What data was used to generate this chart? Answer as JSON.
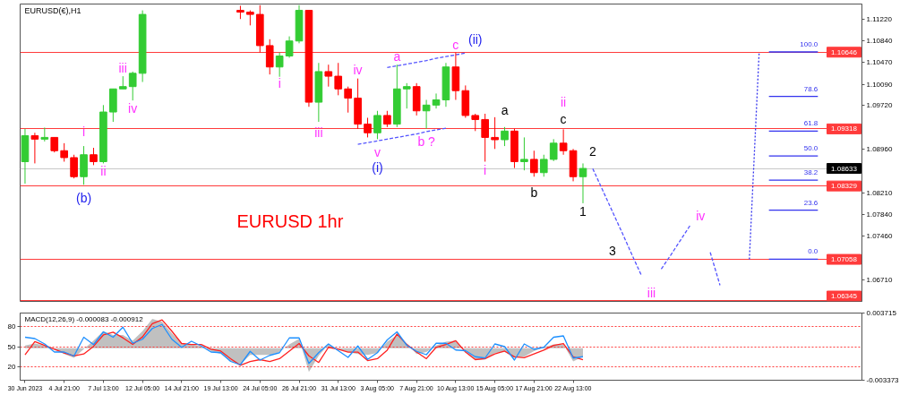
{
  "chart_data": [
    {
      "type": "candlestick",
      "title": "EURUSD(€),H1",
      "tick_labels": "y",
      "ylim": [
        1.0633,
        1.1148
      ],
      "annotations": [
        "EURUSD 1hr",
        "i",
        "ii",
        "iii",
        "iv",
        "i",
        "iii",
        "iv",
        "v",
        "a",
        "b ?",
        "c",
        "i",
        "ii",
        "iii",
        "iv",
        "(b)",
        "(i)",
        "(ii)",
        "a",
        "b",
        "c",
        "1",
        "2",
        "3"
      ],
      "categories": [
        null,
        null,
        null,
        null,
        null,
        null,
        null,
        null,
        null,
        null,
        null,
        null,
        null,
        null,
        null,
        null,
        null,
        null,
        null,
        null,
        null,
        null,
        null,
        null,
        null,
        null,
        null,
        null,
        null,
        null,
        null,
        null,
        null,
        null,
        null,
        null,
        null,
        null,
        null,
        null,
        null,
        null,
        null,
        null,
        null,
        null,
        null,
        null,
        null,
        null,
        null,
        null,
        null,
        null,
        null,
        null,
        null,
        null,
        null,
        null,
        null,
        null,
        null,
        null,
        null,
        null,
        null,
        null,
        null,
        null,
        null,
        null,
        null,
        null,
        null,
        null,
        null,
        null,
        null,
        null,
        null,
        null,
        null,
        null,
        null,
        null
      ],
      "yticks": [
        {
          "value": 1.1122,
          "label": "1.11220"
        },
        {
          "value": 1.1084,
          "label": "1.10840"
        },
        {
          "value": 1.1047,
          "label": "1.10470"
        },
        {
          "value": 1.1009,
          "label": "1.10090"
        },
        {
          "value": 1.0972,
          "label": "1.09720"
        },
        {
          "value": 1.0896,
          "label": "1.08960"
        },
        {
          "value": 1.0821,
          "label": "1.08210"
        },
        {
          "value": 1.0784,
          "label": "1.07840"
        },
        {
          "value": 1.0746,
          "label": "1.07460"
        },
        {
          "value": 1.0671,
          "label": "1.06710"
        }
      ],
      "ohlc": [
        [
          1.0875,
          1.0932,
          1.0837,
          1.092
        ],
        [
          1.092,
          1.0925,
          1.0872,
          1.0914
        ],
        [
          1.0914,
          1.0934,
          1.091,
          1.0917
        ],
        [
          1.0917,
          1.0917,
          1.0891,
          1.0894
        ],
        [
          1.0894,
          1.0907,
          1.0875,
          1.0882
        ],
        [
          1.0882,
          1.0887,
          1.0846,
          1.0849
        ],
        [
          1.0849,
          1.0902,
          1.0835,
          1.0887
        ],
        [
          1.0887,
          1.0899,
          1.0869,
          1.0875
        ],
        [
          1.0875,
          1.0973,
          1.0872,
          1.0961
        ],
        [
          1.0961,
          1.1001,
          1.0944,
          1.1001
        ],
        [
          1.1001,
          1.1023,
          1.1001,
          1.1005
        ],
        [
          1.1005,
          1.1031,
          1.0981,
          1.1028
        ],
        [
          1.1028,
          1.1137,
          1.1013,
          1.113
        ],
        null,
        null,
        null,
        null,
        null,
        null,
        null,
        null,
        null,
        [
          1.1137,
          1.1145,
          1.1122,
          1.1134
        ],
        [
          1.1134,
          1.1137,
          1.1111,
          1.113
        ],
        [
          1.113,
          1.1146,
          1.1064,
          1.1076
        ],
        [
          1.1076,
          1.1087,
          1.1026,
          1.1039
        ],
        [
          1.1039,
          1.1064,
          1.1022,
          1.1058
        ],
        [
          1.1058,
          1.1092,
          1.1055,
          1.1084
        ],
        [
          1.1084,
          1.1146,
          1.108,
          1.1137
        ],
        [
          1.1137,
          1.1137,
          1.097,
          1.0978
        ],
        [
          1.0978,
          1.1046,
          1.0944,
          1.1031
        ],
        [
          1.1031,
          1.1043,
          1.1005,
          1.1023
        ],
        [
          1.1023,
          1.1046,
          1.099,
          1.1001
        ],
        [
          1.1001,
          1.1005,
          1.096,
          1.0985
        ],
        [
          1.0985,
          1.1019,
          1.0932,
          1.094
        ],
        [
          1.094,
          1.0951,
          1.0917,
          1.0925
        ],
        [
          1.0925,
          1.0963,
          1.0914,
          1.0955
        ],
        [
          1.0955,
          1.0963,
          1.0935,
          1.094
        ],
        [
          1.094,
          1.1043,
          1.0935,
          1.1001
        ],
        [
          1.1001,
          1.1011,
          1.0967,
          1.1005
        ],
        [
          1.1005,
          1.1011,
          1.0955,
          1.0963
        ],
        [
          1.0963,
          1.0982,
          1.0932,
          1.0973
        ],
        [
          1.0973,
          1.0993,
          1.0967,
          1.0982
        ],
        [
          1.0982,
          1.1046,
          1.097,
          1.1039
        ],
        [
          1.1039,
          1.1064,
          1.0982,
          1.0998
        ],
        [
          1.0998,
          1.1007,
          1.0951,
          1.0955
        ],
        [
          1.0955,
          1.0958,
          1.0928,
          1.0948
        ],
        [
          1.0948,
          1.0958,
          1.0875,
          1.0917
        ],
        [
          1.0917,
          1.0952,
          1.0897,
          1.0913
        ],
        [
          1.0913,
          1.0935,
          1.0902,
          1.0928
        ],
        [
          1.0928,
          1.0932,
          1.0864,
          1.0875
        ],
        [
          1.0875,
          1.0917,
          1.086,
          1.0879
        ],
        [
          1.0879,
          1.0894,
          1.0849,
          1.0856
        ],
        [
          1.0856,
          1.0887,
          1.0849,
          1.0879
        ],
        [
          1.0879,
          1.0914,
          1.0876,
          1.0907
        ],
        [
          1.0907,
          1.0931,
          1.0887,
          1.0894
        ],
        [
          1.0894,
          1.0897,
          1.0841,
          1.0849
        ],
        [
          1.0849,
          1.0872,
          1.0803,
          1.08633
        ],
        null,
        null,
        null,
        null,
        null,
        null,
        null,
        null,
        null,
        null,
        null,
        null,
        null,
        null,
        null,
        null,
        null,
        null,
        null,
        null,
        null,
        null,
        null,
        null,
        null,
        null,
        null,
        null
      ],
      "colors": [
        "#33cc33",
        "#ff0000",
        "#33cc33",
        "#ff0000",
        "#ff0000",
        "#ff0000",
        "#33cc33",
        "#ff0000",
        "#33cc33",
        "#33cc33",
        "#33cc33",
        "#33cc33",
        "#33cc33",
        null,
        null,
        null,
        null,
        null,
        null,
        null,
        null,
        null,
        "#ff0000",
        "#ff0000",
        "#ff0000",
        "#ff0000",
        "#33cc33",
        "#33cc33",
        "#33cc33",
        "#ff0000",
        "#33cc33",
        "#ff0000",
        "#ff0000",
        "#ff0000",
        "#ff0000",
        "#ff0000",
        "#33cc33",
        "#ff0000",
        "#33cc33",
        "#33cc33",
        "#ff0000",
        "#33cc33",
        "#33cc33",
        "#33cc33",
        "#ff0000",
        "#ff0000",
        "#ff0000",
        "#ff0000",
        "#ff0000",
        "#33cc33",
        "#ff0000",
        "#33cc33",
        "#ff0000",
        "#33cc33",
        "#33cc33",
        "#ff0000",
        "#ff0000",
        "#33cc33",
        null,
        null,
        null,
        null,
        null,
        null,
        null,
        null,
        null,
        null,
        null,
        null,
        null,
        null,
        null,
        null,
        null,
        null,
        null,
        null,
        null,
        null,
        null,
        null,
        null,
        null,
        null,
        null
      ],
      "ref_lines": [
        {
          "axis": "y",
          "value": 1.10646,
          "label": "1.10646",
          "color": "#ff3b3b"
        },
        {
          "axis": "y",
          "value": 1.09318,
          "label": "1.09318",
          "color": "#ff3b3b"
        },
        {
          "axis": "y",
          "value": 1.08633,
          "label": "1.08633",
          "color": "#c8c8c8"
        },
        {
          "axis": "y",
          "value": 1.08329,
          "label": "1.08329",
          "color": "#ff3b3b"
        },
        {
          "axis": "y",
          "value": 1.07058,
          "label": "1.07058",
          "color": "#ff3b3b"
        },
        {
          "axis": "y",
          "value": 1.06345,
          "label": "1.06345",
          "color": "#ff3b3b"
        }
      ],
      "series": [
        {
          "type": "line",
          "line_style": "dashed",
          "color": "#5555ff",
          "values": [
            null,
            null,
            null,
            null,
            null,
            null,
            null,
            null,
            null,
            null,
            null,
            null,
            null,
            null,
            null,
            null,
            null,
            null,
            null,
            null,
            null,
            null,
            null,
            null,
            null,
            null,
            null,
            null,
            null,
            null,
            null,
            null,
            null,
            null,
            null,
            null,
            null,
            null,
            null,
            null,
            null,
            null,
            null,
            null,
            null,
            null,
            null,
            null,
            null,
            null,
            null,
            null,
            null,
            null,
            null,
            null,
            null,
            null,
            1.0863,
            1.0826,
            1.0789,
            1.0752,
            1.0714,
            1.0677,
            null,
            1.0689,
            1.0714,
            1.074,
            1.0766,
            null,
            1.0718,
            1.0661,
            null,
            null,
            null,
            null,
            null,
            null,
            null,
            null,
            null,
            null,
            null,
            null,
            null,
            null
          ]
        },
        {
          "type": "line",
          "line_style": "dashed",
          "color": "#5555ff",
          "values": [
            null,
            null,
            null,
            null,
            null,
            null,
            null,
            null,
            null,
            null,
            null,
            null,
            null,
            null,
            null,
            null,
            null,
            null,
            null,
            null,
            null,
            null,
            null,
            null,
            null,
            null,
            null,
            null,
            null,
            null,
            null,
            null,
            null,
            null,
            null,
            null,
            null,
            1.1038,
            1.1041,
            1.1044,
            1.1047,
            1.105,
            1.1054,
            1.1057,
            1.106,
            1.1063,
            null,
            null,
            null,
            null,
            null,
            null,
            null,
            null,
            null,
            null,
            null,
            null,
            null,
            null,
            null,
            null,
            null,
            null,
            null,
            null,
            null,
            null,
            null,
            null,
            null,
            null,
            null,
            null,
            null,
            null,
            null,
            null,
            null,
            null,
            null,
            null,
            null,
            null,
            null,
            null
          ]
        },
        {
          "type": "line",
          "line_style": "dashed",
          "color": "#5555ff",
          "values": [
            null,
            null,
            null,
            null,
            null,
            null,
            null,
            null,
            null,
            null,
            null,
            null,
            null,
            null,
            null,
            null,
            null,
            null,
            null,
            null,
            null,
            null,
            null,
            null,
            null,
            null,
            null,
            null,
            null,
            null,
            null,
            null,
            null,
            null,
            1.0905,
            1.0908,
            1.0911,
            1.0914,
            1.0917,
            1.092,
            1.0923,
            1.0927,
            1.093,
            1.0933,
            null,
            null,
            null,
            null,
            null,
            null,
            null,
            null,
            null,
            null,
            null,
            null,
            null,
            null,
            null,
            null,
            null,
            null,
            null,
            null,
            null,
            null,
            null,
            null,
            null,
            null,
            null,
            null,
            null,
            null,
            null,
            null,
            null,
            null,
            null,
            null,
            null,
            null,
            null,
            null,
            null,
            null
          ]
        },
        {
          "type": "line",
          "line_style": "dotted",
          "color": "#3333ee",
          "values": [
            null,
            null,
            null,
            null,
            null,
            null,
            null,
            null,
            null,
            null,
            null,
            null,
            null,
            null,
            null,
            null,
            null,
            null,
            null,
            null,
            null,
            null,
            null,
            null,
            null,
            null,
            null,
            null,
            null,
            null,
            null,
            null,
            null,
            null,
            null,
            null,
            null,
            null,
            null,
            null,
            null,
            null,
            null,
            null,
            null,
            null,
            null,
            null,
            null,
            null,
            null,
            null,
            null,
            null,
            null,
            null,
            null,
            null,
            null,
            null,
            null,
            null,
            null,
            null,
            null,
            null,
            null,
            null,
            null,
            null,
            null,
            null,
            null,
            null,
            1.0706,
            1.1065,
            null,
            null,
            null,
            null,
            null,
            null,
            null,
            null,
            null,
            null
          ]
        },
        {
          "type": "line",
          "name": "100.0",
          "color": "#3333ee",
          "values": [
            null,
            null,
            null,
            null,
            null,
            null,
            null,
            null,
            null,
            null,
            null,
            null,
            null,
            null,
            null,
            null,
            null,
            null,
            null,
            null,
            null,
            null,
            null,
            null,
            null,
            null,
            null,
            null,
            null,
            null,
            null,
            null,
            null,
            null,
            null,
            null,
            null,
            null,
            null,
            null,
            null,
            null,
            null,
            null,
            null,
            null,
            null,
            null,
            null,
            null,
            null,
            null,
            null,
            null,
            null,
            null,
            null,
            null,
            null,
            null,
            null,
            null,
            null,
            null,
            null,
            null,
            null,
            null,
            null,
            null,
            null,
            null,
            null,
            null,
            null,
            null,
            1.1065,
            1.1065,
            1.1065,
            1.1065,
            1.1065,
            1.1065,
            null,
            null,
            null,
            null
          ]
        },
        {
          "type": "line",
          "name": "78.6",
          "color": "#3333ee",
          "values": [
            null,
            null,
            null,
            null,
            null,
            null,
            null,
            null,
            null,
            null,
            null,
            null,
            null,
            null,
            null,
            null,
            null,
            null,
            null,
            null,
            null,
            null,
            null,
            null,
            null,
            null,
            null,
            null,
            null,
            null,
            null,
            null,
            null,
            null,
            null,
            null,
            null,
            null,
            null,
            null,
            null,
            null,
            null,
            null,
            null,
            null,
            null,
            null,
            null,
            null,
            null,
            null,
            null,
            null,
            null,
            null,
            null,
            null,
            null,
            null,
            null,
            null,
            null,
            null,
            null,
            null,
            null,
            null,
            null,
            null,
            null,
            null,
            null,
            null,
            null,
            null,
            1.0988,
            1.0988,
            1.0988,
            1.0988,
            1.0988,
            1.0988,
            null,
            null,
            null,
            null
          ]
        },
        {
          "type": "line",
          "name": "61.8",
          "color": "#3333ee",
          "values": [
            null,
            null,
            null,
            null,
            null,
            null,
            null,
            null,
            null,
            null,
            null,
            null,
            null,
            null,
            null,
            null,
            null,
            null,
            null,
            null,
            null,
            null,
            null,
            null,
            null,
            null,
            null,
            null,
            null,
            null,
            null,
            null,
            null,
            null,
            null,
            null,
            null,
            null,
            null,
            null,
            null,
            null,
            null,
            null,
            null,
            null,
            null,
            null,
            null,
            null,
            null,
            null,
            null,
            null,
            null,
            null,
            null,
            null,
            null,
            null,
            null,
            null,
            null,
            null,
            null,
            null,
            null,
            null,
            null,
            null,
            null,
            null,
            null,
            null,
            null,
            null,
            1.0928,
            1.0928,
            1.0928,
            1.0928,
            1.0928,
            1.0928,
            null,
            null,
            null,
            null
          ]
        },
        {
          "type": "line",
          "name": "50.0",
          "color": "#3333ee",
          "values": [
            null,
            null,
            null,
            null,
            null,
            null,
            null,
            null,
            null,
            null,
            null,
            null,
            null,
            null,
            null,
            null,
            null,
            null,
            null,
            null,
            null,
            null,
            null,
            null,
            null,
            null,
            null,
            null,
            null,
            null,
            null,
            null,
            null,
            null,
            null,
            null,
            null,
            null,
            null,
            null,
            null,
            null,
            null,
            null,
            null,
            null,
            null,
            null,
            null,
            null,
            null,
            null,
            null,
            null,
            null,
            null,
            null,
            null,
            null,
            null,
            null,
            null,
            null,
            null,
            null,
            null,
            null,
            null,
            null,
            null,
            null,
            null,
            null,
            null,
            null,
            null,
            1.0885,
            1.0885,
            1.0885,
            1.0885,
            1.0885,
            1.0885,
            null,
            null,
            null,
            null
          ]
        },
        {
          "type": "line",
          "name": "38.2",
          "color": "#3333ee",
          "values": [
            null,
            null,
            null,
            null,
            null,
            null,
            null,
            null,
            null,
            null,
            null,
            null,
            null,
            null,
            null,
            null,
            null,
            null,
            null,
            null,
            null,
            null,
            null,
            null,
            null,
            null,
            null,
            null,
            null,
            null,
            null,
            null,
            null,
            null,
            null,
            null,
            null,
            null,
            null,
            null,
            null,
            null,
            null,
            null,
            null,
            null,
            null,
            null,
            null,
            null,
            null,
            null,
            null,
            null,
            null,
            null,
            null,
            null,
            null,
            null,
            null,
            null,
            null,
            null,
            null,
            null,
            null,
            null,
            null,
            null,
            null,
            null,
            null,
            null,
            null,
            null,
            1.0843,
            1.0843,
            1.0843,
            1.0843,
            1.0843,
            1.0843,
            null,
            null,
            null,
            null
          ]
        },
        {
          "type": "line",
          "name": "23.6",
          "color": "#3333ee",
          "values": [
            null,
            null,
            null,
            null,
            null,
            null,
            null,
            null,
            null,
            null,
            null,
            null,
            null,
            null,
            null,
            null,
            null,
            null,
            null,
            null,
            null,
            null,
            null,
            null,
            null,
            null,
            null,
            null,
            null,
            null,
            null,
            null,
            null,
            null,
            null,
            null,
            null,
            null,
            null,
            null,
            null,
            null,
            null,
            null,
            null,
            null,
            null,
            null,
            null,
            null,
            null,
            null,
            null,
            null,
            null,
            null,
            null,
            null,
            null,
            null,
            null,
            null,
            null,
            null,
            null,
            null,
            null,
            null,
            null,
            null,
            null,
            null,
            null,
            null,
            null,
            null,
            1.0791,
            1.0791,
            1.0791,
            1.0791,
            1.0791,
            1.0791,
            null,
            null,
            null,
            null
          ]
        },
        {
          "type": "line",
          "name": "0.0",
          "color": "#3333ee",
          "values": [
            null,
            null,
            null,
            null,
            null,
            null,
            null,
            null,
            null,
            null,
            null,
            null,
            null,
            null,
            null,
            null,
            null,
            null,
            null,
            null,
            null,
            null,
            null,
            null,
            null,
            null,
            null,
            null,
            null,
            null,
            null,
            null,
            null,
            null,
            null,
            null,
            null,
            null,
            null,
            null,
            null,
            null,
            null,
            null,
            null,
            null,
            null,
            null,
            null,
            null,
            null,
            null,
            null,
            null,
            null,
            null,
            null,
            null,
            null,
            null,
            null,
            null,
            null,
            null,
            null,
            null,
            null,
            null,
            null,
            null,
            null,
            null,
            null,
            null,
            null,
            null,
            1.0706,
            1.0706,
            1.0706,
            1.0706,
            1.0706,
            1.0706,
            null,
            null,
            null,
            null
          ]
        }
      ]
    },
    {
      "type": "area",
      "title": "MACD(12,26,9) -0.000083 -0.000912",
      "categories": [
        "30 Jun 2023",
        null,
        null,
        null,
        "4 Jul 21:00",
        null,
        null,
        null,
        "7 Jul 13:00",
        null,
        null,
        null,
        "12 Jul 05:00",
        null,
        null,
        null,
        "14 Jul 21:00",
        null,
        null,
        null,
        "19 Jul 13:00",
        null,
        null,
        null,
        "24 Jul 05:00",
        null,
        null,
        null,
        "26 Jul 21:00",
        null,
        null,
        null,
        "31 Jul 13:00",
        null,
        null,
        null,
        "3 Aug 05:00",
        null,
        null,
        null,
        "7 Aug 21:00",
        null,
        null,
        null,
        "10 Aug 13:00",
        null,
        null,
        null,
        "15 Aug 05:00",
        null,
        null,
        null,
        "17 Aug 21:00",
        null,
        null,
        null,
        "22 Aug 13:00",
        null,
        null,
        null,
        null,
        null,
        null,
        null,
        null,
        null,
        null,
        null,
        null,
        null,
        null,
        null,
        null,
        null,
        null,
        null,
        null,
        null,
        null,
        null,
        null,
        null,
        null,
        null,
        null,
        null
      ],
      "ylim": [
        -0.003373,
        0.003715
      ],
      "yticks": [
        0.003715,
        -0.003373
      ],
      "y2lim": [
        0,
        100
      ],
      "y2ticks": [
        80,
        50,
        20
      ],
      "ref_lines": [
        {
          "axis": "y2",
          "value": 80,
          "color": "#ff3b3b",
          "line_style": "dotted"
        },
        {
          "axis": "y2",
          "value": 50,
          "color": "#ff3b3b",
          "line_style": "dotted"
        },
        {
          "axis": "y2",
          "value": 20,
          "color": "#ff3b3b",
          "line_style": "dotted"
        }
      ],
      "series": [
        {
          "color": "#c0c0c0",
          "values": [
            0.0003,
            0.0005,
            0.0003,
            -0.0001,
            -0.0006,
            -0.001,
            -0.0001,
            0.0008,
            0.0018,
            0.0014,
            0.0014,
            0.0008,
            0.0018,
            0.0031,
            0.0028,
            0.0016,
            0.0005,
            0.0004,
            0.0002,
            -0.0003,
            -0.0006,
            -0.0014,
            -0.0017,
            -0.0007,
            -0.0007,
            -0.0007,
            -0.0004,
            0.0004,
            0.001,
            -0.0025,
            -0.0008,
            0.0004,
            -0.0001,
            -0.0004,
            -0.0006,
            -0.0007,
            -0.0005,
            0.0007,
            0.0014,
            0.0005,
            -0.0006,
            -0.0004,
            0.0003,
            0.0007,
            0.0008,
            -0.0003,
            -0.0012,
            -0.0012,
            -0.0005,
            -0.0004,
            -0.001,
            -0.0009,
            -0.0003,
            0.0001,
            0.0004,
            0.0004,
            -0.0014,
            -0.0009,
            null,
            null,
            null,
            null,
            null,
            null,
            null,
            null,
            null,
            null,
            null,
            null,
            null,
            null,
            null,
            null,
            null,
            null,
            null,
            null,
            null,
            null,
            null,
            null,
            null,
            null,
            null,
            null
          ]
        },
        {
          "type": "line",
          "color": "#ff2020",
          "values": [
            -0.0007,
            0.0007,
            0.0003,
            -0.0001,
            -0.0005,
            -0.0008,
            -0.0006,
            0.0002,
            0.0014,
            0.0017,
            0.0011,
            0.0004,
            0.0012,
            0.0026,
            0.003,
            0.0018,
            0.0005,
            0.0004,
            0.0004,
            -0.0001,
            -0.0003,
            -0.0011,
            -0.0018,
            -0.0014,
            -0.0012,
            -0.0014,
            -0.0011,
            -0.0003,
            0.0005,
            -0.0008,
            -0.0015,
            0.0001,
            -0.0001,
            -0.0004,
            -0.0004,
            -0.0013,
            -0.0011,
            -0.0002,
            0.0015,
            0.0004,
            -0.0004,
            -0.0011,
            0.0001,
            0.0004,
            0.0008,
            -0.0004,
            -0.0012,
            -0.0011,
            -0.0006,
            -0.0003,
            -0.0009,
            -0.001,
            -0.0006,
            -0.0002,
            0.0003,
            0.0005,
            -0.0009,
            -0.0012,
            null,
            null,
            null,
            null,
            null,
            null,
            null,
            null,
            null,
            null,
            null,
            null,
            null,
            null,
            null,
            null,
            null,
            null,
            null,
            null,
            null,
            null,
            null,
            null,
            null,
            null,
            null,
            null
          ]
        },
        {
          "type": "line",
          "axis": "y2",
          "color": "#1e90ff",
          "values": [
            64,
            62,
            54,
            42,
            42,
            36,
            64,
            53,
            72,
            64,
            79,
            55,
            61,
            77,
            83,
            61,
            49,
            58,
            51,
            42,
            41,
            28,
            23,
            43,
            30,
            37,
            41,
            63,
            63,
            25,
            41,
            54,
            44,
            34,
            51,
            31,
            41,
            60,
            72,
            52,
            43,
            38,
            55,
            55,
            45,
            44,
            35,
            33,
            54,
            50,
            30,
            54,
            46,
            49,
            64,
            66,
            33,
            35,
            null,
            null,
            null,
            null,
            null,
            null,
            null,
            null,
            null,
            null,
            null,
            null,
            null,
            null,
            null,
            null,
            null,
            null,
            null,
            null,
            null,
            null,
            null,
            null,
            null,
            null,
            null,
            null
          ]
        }
      ]
    }
  ]
}
